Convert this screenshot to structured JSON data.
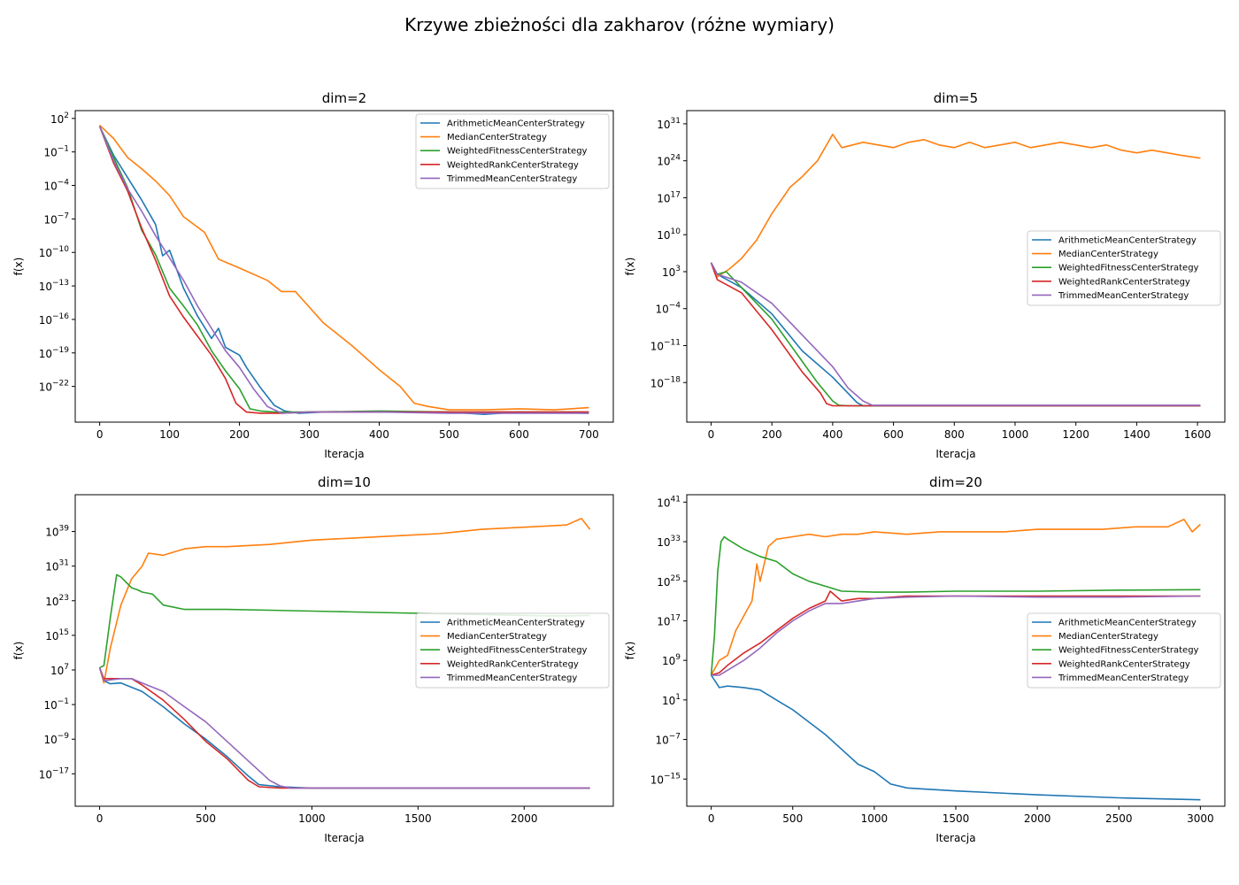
{
  "figure": {
    "suptitle": "Krzywe zbieżności dla zakharov (różne wymiary)"
  },
  "chart_data": [
    {
      "type": "line",
      "title": "dim=2",
      "xlabel": "Iteracja",
      "ylabel": "f(x)",
      "yscale": "log",
      "xlim": [
        -35,
        735
      ],
      "ylim_exp": [
        -25.2,
        2.7
      ],
      "xticks": [
        0,
        100,
        200,
        300,
        400,
        500,
        600,
        700
      ],
      "yticks_exp": [
        2,
        -1,
        -4,
        -7,
        -10,
        -13,
        -16,
        -19,
        -22
      ],
      "legend_position": "top-right",
      "series": [
        {
          "name": "ArithmeticMeanCenterStrategy",
          "color": "#1f77b4",
          "x": [
            0,
            20,
            40,
            60,
            80,
            90,
            100,
            110,
            120,
            140,
            160,
            170,
            180,
            200,
            210,
            230,
            250,
            265,
            285,
            320,
            400,
            500,
            550,
            600,
            700
          ],
          "y": [
            1.3,
            -1.3,
            -3.3,
            -5.3,
            -7.5,
            -10.3,
            -9.8,
            -11.5,
            -13.2,
            -15.7,
            -17.7,
            -16.8,
            -18.5,
            -19.2,
            -20.3,
            -22.1,
            -23.7,
            -24.2,
            -24.4,
            -24.3,
            -24.3,
            -24.3,
            -24.5,
            -24.3,
            -24.4
          ]
        },
        {
          "name": "MedianCenterStrategy",
          "color": "#ff7f0e",
          "x": [
            0,
            20,
            40,
            60,
            80,
            100,
            120,
            150,
            170,
            200,
            240,
            260,
            280,
            320,
            360,
            400,
            430,
            450,
            470,
            500,
            550,
            600,
            650,
            700
          ],
          "y": [
            1.4,
            0.2,
            -1.5,
            -2.5,
            -3.6,
            -4.9,
            -6.8,
            -8.2,
            -10.6,
            -11.4,
            -12.5,
            -13.5,
            -13.5,
            -16.3,
            -18.3,
            -20.5,
            -22.0,
            -23.5,
            -23.8,
            -24.1,
            -24.1,
            -24.0,
            -24.1,
            -23.9
          ]
        },
        {
          "name": "WeightedFitnessCenterStrategy",
          "color": "#2ca02c",
          "x": [
            0,
            20,
            40,
            60,
            80,
            100,
            120,
            140,
            160,
            180,
            200,
            215,
            230,
            250,
            300,
            400,
            500,
            600,
            700
          ],
          "y": [
            1.3,
            -1.5,
            -4.2,
            -8.0,
            -10.2,
            -13.2,
            -14.8,
            -16.5,
            -18.8,
            -20.6,
            -22.2,
            -24.0,
            -24.2,
            -24.3,
            -24.3,
            -24.2,
            -24.3,
            -24.3,
            -24.3
          ]
        },
        {
          "name": "WeightedRankCenterStrategy",
          "color": "#d62728",
          "x": [
            0,
            20,
            40,
            60,
            80,
            100,
            120,
            140,
            160,
            180,
            195,
            210,
            230,
            260,
            300,
            400,
            500,
            600,
            700
          ],
          "y": [
            1.3,
            -2.0,
            -4.5,
            -7.8,
            -10.7,
            -13.9,
            -15.8,
            -17.5,
            -19.2,
            -21.3,
            -23.5,
            -24.3,
            -24.4,
            -24.4,
            -24.3,
            -24.3,
            -24.3,
            -24.3,
            -24.3
          ]
        },
        {
          "name": "TrimmedMeanCenterStrategy",
          "color": "#9467bd",
          "x": [
            0,
            20,
            40,
            60,
            80,
            100,
            120,
            140,
            160,
            180,
            200,
            220,
            240,
            260,
            300,
            400,
            500,
            600,
            700
          ],
          "y": [
            1.3,
            -1.8,
            -4.3,
            -6.3,
            -8.5,
            -10.5,
            -12.5,
            -14.8,
            -16.8,
            -18.8,
            -20.3,
            -22.2,
            -23.8,
            -24.4,
            -24.3,
            -24.3,
            -24.4,
            -24.4,
            -24.4
          ]
        }
      ]
    },
    {
      "type": "line",
      "title": "dim=5",
      "xlabel": "Iteracja",
      "ylabel": "f(x)",
      "yscale": "log",
      "xlim": [
        -80,
        1690
      ],
      "ylim_exp": [
        -25.5,
        33.5
      ],
      "xticks": [
        0,
        200,
        400,
        600,
        800,
        1000,
        1200,
        1400,
        1600
      ],
      "yticks_exp": [
        31,
        24,
        17,
        10,
        3,
        -4,
        -11,
        -18
      ],
      "legend_position": "center-right",
      "series": [
        {
          "name": "ArithmeticMeanCenterStrategy",
          "color": "#1f77b4",
          "x": [
            0,
            20,
            100,
            200,
            300,
            400,
            450,
            480,
            500,
            600,
            800,
            1000,
            1200,
            1400,
            1610
          ],
          "y": [
            4.7,
            2.5,
            0,
            -5,
            -12,
            -17,
            -20,
            -21.8,
            -22.4,
            -22.4,
            -22.4,
            -22.4,
            -22.4,
            -22.4,
            -22.4
          ]
        },
        {
          "name": "MedianCenterStrategy",
          "color": "#ff7f0e",
          "x": [
            0,
            20,
            60,
            100,
            150,
            200,
            260,
            300,
            350,
            380,
            400,
            430,
            500,
            550,
            600,
            650,
            700,
            750,
            800,
            850,
            900,
            950,
            1000,
            1050,
            1100,
            1150,
            1200,
            1250,
            1300,
            1350,
            1400,
            1450,
            1500,
            1550,
            1610
          ],
          "y": [
            4.7,
            2.0,
            3.5,
            5.5,
            9.0,
            14.0,
            19.0,
            21.0,
            24.0,
            27.0,
            29.0,
            26.5,
            27.5,
            27.0,
            26.5,
            27.5,
            28.0,
            27.0,
            26.5,
            27.5,
            26.5,
            27.0,
            27.5,
            26.5,
            27.0,
            27.5,
            27.0,
            26.5,
            27.0,
            26.0,
            25.5,
            26.0,
            25.5,
            25.0,
            24.5
          ]
        },
        {
          "name": "WeightedFitnessCenterStrategy",
          "color": "#2ca02c",
          "x": [
            0,
            20,
            50,
            100,
            200,
            300,
            350,
            400,
            420,
            450,
            600,
            800,
            1000,
            1200,
            1400,
            1610
          ],
          "y": [
            4.7,
            2.5,
            3.0,
            0,
            -6,
            -14,
            -18,
            -21.5,
            -22.3,
            -22.4,
            -22.4,
            -22.4,
            -22.4,
            -22.4,
            -22.4,
            -22.4
          ]
        },
        {
          "name": "WeightedRankCenterStrategy",
          "color": "#d62728",
          "x": [
            0,
            20,
            100,
            200,
            300,
            360,
            380,
            400,
            600,
            800,
            1000,
            1200,
            1400,
            1610
          ],
          "y": [
            4.7,
            1.5,
            -1,
            -8,
            -16,
            -20,
            -22.0,
            -22.4,
            -22.4,
            -22.4,
            -22.4,
            -22.4,
            -22.4,
            -22.4
          ]
        },
        {
          "name": "TrimmedMeanCenterStrategy",
          "color": "#9467bd",
          "x": [
            0,
            20,
            100,
            200,
            300,
            400,
            450,
            500,
            530,
            600,
            800,
            1000,
            1200,
            1400,
            1610
          ],
          "y": [
            4.7,
            2.5,
            1,
            -3,
            -9,
            -15,
            -19,
            -21.5,
            -22.3,
            -22.3,
            -22.3,
            -22.3,
            -22.3,
            -22.3,
            -22.3
          ]
        }
      ]
    },
    {
      "type": "line",
      "title": "dim=10",
      "xlabel": "Iteracja",
      "ylabel": "f(x)",
      "yscale": "log",
      "xlim": [
        -115,
        2420
      ],
      "ylim_exp": [
        -24.5,
        47.5
      ],
      "xticks": [
        0,
        500,
        1000,
        1500,
        2000
      ],
      "yticks_exp": [
        39,
        31,
        23,
        15,
        7,
        -1,
        -9,
        -17
      ],
      "legend_position": "center-right",
      "series": [
        {
          "name": "ArithmeticMeanCenterStrategy",
          "color": "#1f77b4",
          "x": [
            0,
            20,
            50,
            100,
            200,
            300,
            400,
            500,
            600,
            700,
            750,
            850,
            1000,
            1500,
            2000,
            2310
          ],
          "y": [
            7.5,
            4.5,
            3.8,
            4.0,
            2.0,
            -1.5,
            -5.5,
            -9.0,
            -13.0,
            -17.5,
            -19.5,
            -20.0,
            -20.3,
            -20.3,
            -20.3,
            -20.3
          ]
        },
        {
          "name": "MedianCenterStrategy",
          "color": "#ff7f0e",
          "x": [
            0,
            20,
            50,
            100,
            150,
            200,
            230,
            300,
            400,
            500,
            600,
            800,
            1000,
            1200,
            1400,
            1600,
            1800,
            2000,
            2200,
            2270,
            2310
          ],
          "y": [
            7.5,
            4.0,
            12.0,
            22.0,
            28.0,
            31.0,
            34.0,
            33.5,
            35.0,
            35.5,
            35.5,
            36.0,
            37.0,
            37.5,
            38.0,
            38.5,
            39.5,
            40.0,
            40.5,
            42.0,
            39.5
          ]
        },
        {
          "name": "WeightedFitnessCenterStrategy",
          "color": "#2ca02c",
          "x": [
            0,
            20,
            50,
            80,
            100,
            120,
            150,
            180,
            200,
            250,
            300,
            400,
            600,
            800,
            1000,
            1200,
            1400,
            1600,
            1800,
            2000,
            2100,
            2200,
            2310
          ],
          "y": [
            7.5,
            8.0,
            19.0,
            29.0,
            28.5,
            27.5,
            26.0,
            25.5,
            25.0,
            24.5,
            22.0,
            21.0,
            21.0,
            20.8,
            20.6,
            20.4,
            20.2,
            20.0,
            19.8,
            19.6,
            19.5,
            19.5,
            19.6
          ]
        },
        {
          "name": "WeightedRankCenterStrategy",
          "color": "#d62728",
          "x": [
            0,
            20,
            100,
            150,
            200,
            300,
            400,
            500,
            600,
            700,
            750,
            850,
            1000,
            1500,
            2000,
            2310
          ],
          "y": [
            7.5,
            5.0,
            5.0,
            5.0,
            3.5,
            0.0,
            -4.5,
            -9.5,
            -13.5,
            -18.5,
            -20.0,
            -20.3,
            -20.3,
            -20.3,
            -20.3,
            -20.3
          ]
        },
        {
          "name": "TrimmedMeanCenterStrategy",
          "color": "#9467bd",
          "x": [
            0,
            20,
            100,
            150,
            200,
            300,
            400,
            500,
            600,
            700,
            800,
            850,
            900,
            1000,
            1500,
            2000,
            2310
          ],
          "y": [
            7.5,
            4.5,
            5.0,
            5.0,
            4.0,
            2.0,
            -1.5,
            -5.0,
            -9.5,
            -14.0,
            -18.5,
            -19.8,
            -20.3,
            -20.3,
            -20.3,
            -20.3,
            -20.3
          ]
        }
      ]
    },
    {
      "type": "line",
      "title": "dim=20",
      "xlabel": "Iteracja",
      "ylabel": "f(x)",
      "yscale": "log",
      "xlim": [
        -150,
        3150
      ],
      "ylim_exp": [
        -20.5,
        42.5
      ],
      "xticks": [
        0,
        500,
        1000,
        1500,
        2000,
        2500,
        3000
      ],
      "yticks_exp": [
        41,
        33,
        25,
        17,
        9,
        1,
        -7,
        -15
      ],
      "legend_position": "center-right",
      "series": [
        {
          "name": "ArithmeticMeanCenterStrategy",
          "color": "#1f77b4",
          "x": [
            0,
            30,
            50,
            100,
            200,
            300,
            400,
            500,
            600,
            700,
            800,
            900,
            1000,
            1100,
            1200,
            1250,
            1500,
            2000,
            2500,
            3000
          ],
          "y": [
            6.0,
            4.5,
            3.5,
            3.8,
            3.5,
            3.0,
            1.0,
            -1.0,
            -3.5,
            -6.0,
            -9.0,
            -12.0,
            -13.5,
            -16.0,
            -16.8,
            -16.9,
            -17.4,
            -18.2,
            -18.8,
            -19.2
          ]
        },
        {
          "name": "MedianCenterStrategy",
          "color": "#ff7f0e",
          "x": [
            0,
            50,
            100,
            150,
            200,
            250,
            280,
            300,
            350,
            400,
            500,
            600,
            700,
            800,
            900,
            1000,
            1200,
            1400,
            1600,
            1800,
            2000,
            2200,
            2400,
            2600,
            2800,
            2900,
            2950,
            3000
          ],
          "y": [
            6.0,
            9.0,
            10.0,
            15.0,
            18.0,
            21.0,
            28.5,
            25.0,
            32.0,
            33.5,
            34.0,
            34.5,
            34.0,
            34.5,
            34.5,
            35.0,
            34.5,
            35.0,
            35.0,
            35.0,
            35.5,
            35.5,
            35.5,
            36.0,
            36.0,
            37.5,
            35.0,
            36.5
          ]
        },
        {
          "name": "WeightedFitnessCenterStrategy",
          "color": "#2ca02c",
          "x": [
            0,
            20,
            40,
            60,
            80,
            100,
            150,
            200,
            300,
            400,
            500,
            600,
            700,
            800,
            1000,
            1200,
            1500,
            2000,
            2500,
            3000
          ],
          "y": [
            6.0,
            14.0,
            27.0,
            33.0,
            34.0,
            33.5,
            32.5,
            31.5,
            30.0,
            29.0,
            26.5,
            25.0,
            24.0,
            23.0,
            22.8,
            22.8,
            23.0,
            23.0,
            23.2,
            23.3
          ]
        },
        {
          "name": "WeightedRankCenterStrategy",
          "color": "#d62728",
          "x": [
            0,
            50,
            100,
            200,
            300,
            400,
            500,
            600,
            700,
            730,
            800,
            900,
            1000,
            1200,
            1500,
            2000,
            2500,
            3000
          ],
          "y": [
            6.0,
            6.5,
            8.0,
            10.5,
            12.5,
            15.0,
            17.5,
            19.5,
            21.0,
            23.0,
            21.0,
            21.5,
            21.5,
            22.0,
            22.0,
            22.0,
            22.0,
            22.0
          ]
        },
        {
          "name": "TrimmedMeanCenterStrategy",
          "color": "#9467bd",
          "x": [
            0,
            50,
            100,
            200,
            300,
            400,
            500,
            600,
            700,
            800,
            900,
            1000,
            1200,
            1500,
            2000,
            2500,
            3000
          ],
          "y": [
            6.0,
            6.0,
            7.0,
            9.0,
            11.5,
            14.5,
            17.0,
            19.0,
            20.5,
            20.5,
            21.0,
            21.5,
            21.8,
            22.0,
            21.8,
            21.8,
            22.0
          ]
        }
      ]
    }
  ]
}
